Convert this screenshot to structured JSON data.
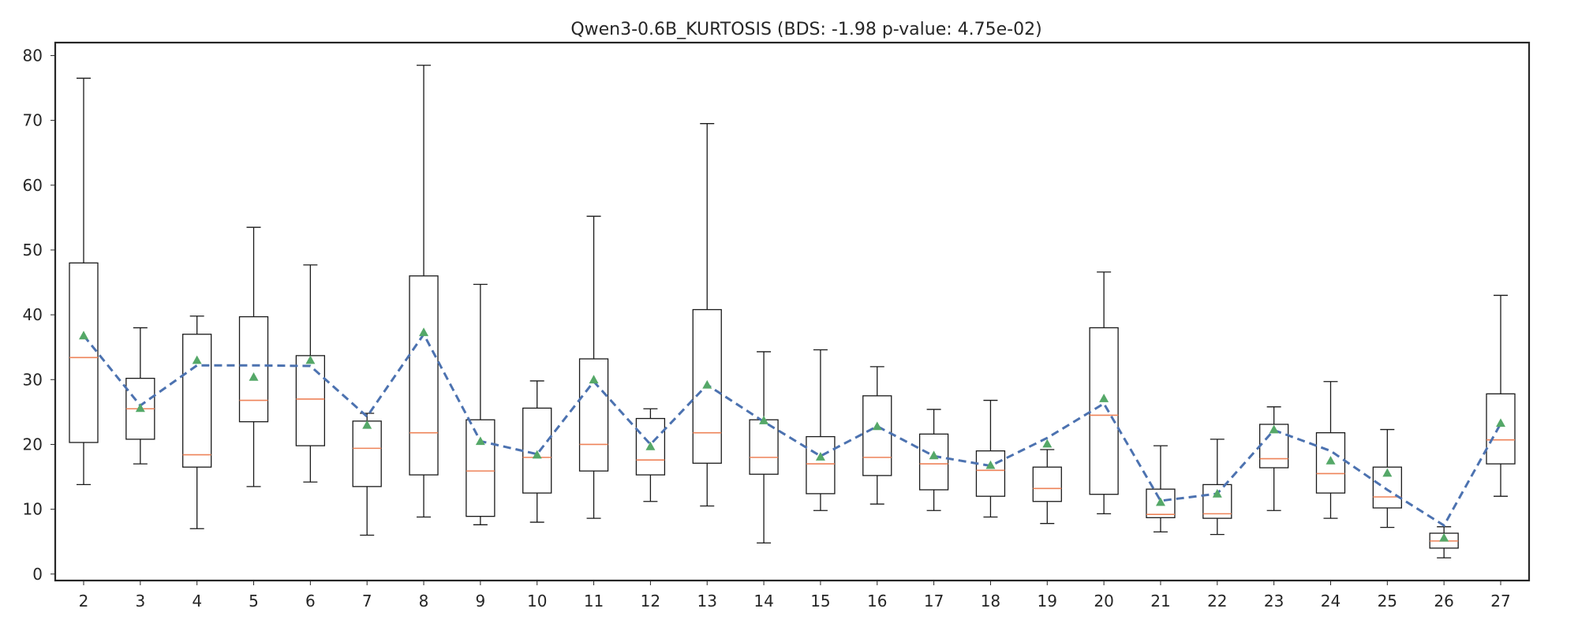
{
  "chart_data": {
    "type": "box",
    "title": "Qwen3-0.6B_KURTOSIS (BDS: -1.98 p-value: 4.75e-02)",
    "xlabel": "",
    "ylabel": "",
    "ylim": [
      -1,
      82
    ],
    "yticks": [
      0,
      10,
      20,
      30,
      40,
      50,
      60,
      70,
      80
    ],
    "grid": false,
    "legend": "none",
    "categories": [
      "2",
      "3",
      "4",
      "5",
      "6",
      "7",
      "8",
      "9",
      "10",
      "11",
      "12",
      "13",
      "14",
      "15",
      "16",
      "17",
      "18",
      "19",
      "20",
      "21",
      "22",
      "23",
      "24",
      "25",
      "26",
      "27"
    ],
    "whisker_low": [
      13.8,
      17.0,
      7.0,
      13.5,
      14.2,
      6.0,
      8.8,
      7.6,
      8.0,
      8.6,
      11.2,
      10.5,
      4.8,
      9.8,
      10.8,
      9.8,
      8.8,
      7.8,
      9.3,
      6.5,
      6.1,
      9.8,
      8.6,
      7.2,
      2.5,
      12.0
    ],
    "q1": [
      20.3,
      20.8,
      16.5,
      23.5,
      19.8,
      13.5,
      15.3,
      8.9,
      12.5,
      15.9,
      15.3,
      17.1,
      15.4,
      12.4,
      15.2,
      13.0,
      12.0,
      11.2,
      12.3,
      8.7,
      8.6,
      16.4,
      12.5,
      10.2,
      4.0,
      17.0
    ],
    "median": [
      33.4,
      25.5,
      18.4,
      26.8,
      27.0,
      19.4,
      21.8,
      15.9,
      18.0,
      20.0,
      17.6,
      21.8,
      18.0,
      17.0,
      18.0,
      17.0,
      16.0,
      13.2,
      24.5,
      9.2,
      9.3,
      17.8,
      15.5,
      11.9,
      5.1,
      20.7
    ],
    "q3": [
      48.0,
      30.2,
      37.0,
      39.7,
      33.7,
      23.6,
      46.0,
      23.8,
      25.6,
      33.2,
      24.0,
      40.8,
      23.8,
      21.2,
      27.5,
      21.6,
      19.0,
      16.5,
      38.0,
      13.1,
      13.8,
      23.1,
      21.8,
      16.5,
      6.3,
      27.8
    ],
    "whisker_high": [
      76.5,
      38.0,
      39.8,
      53.5,
      47.7,
      24.8,
      78.5,
      44.7,
      29.8,
      55.2,
      25.5,
      69.5,
      34.3,
      34.6,
      32.0,
      25.4,
      26.8,
      19.2,
      46.6,
      19.8,
      20.8,
      25.8,
      29.7,
      22.3,
      7.3,
      43.0
    ],
    "mean": [
      36.8,
      25.6,
      33.0,
      30.4,
      33.0,
      23.0,
      37.3,
      20.5,
      18.4,
      30.0,
      19.7,
      29.2,
      23.7,
      18.1,
      22.8,
      18.3,
      16.8,
      20.1,
      27.1,
      11.1,
      12.4,
      22.3,
      17.5,
      15.6,
      5.6,
      23.3
    ],
    "trend": [
      36.8,
      26.0,
      32.2,
      32.2,
      32.1,
      24.3,
      37.0,
      20.5,
      18.5,
      29.7,
      20.0,
      29.2,
      23.5,
      18.2,
      22.8,
      18.2,
      16.7,
      21.0,
      26.3,
      11.3,
      12.4,
      22.2,
      19.0,
      13.0,
      7.5,
      23.2
    ],
    "colors": {
      "box": "#1a1a1a",
      "median": "#ee8359",
      "mean": "#55a868",
      "trend": "#4c72b0"
    }
  }
}
